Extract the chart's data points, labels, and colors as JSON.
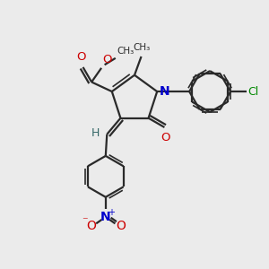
{
  "bg_color": "#ebebeb",
  "bond_color": "#2a2a2a",
  "figsize": [
    3.0,
    3.0
  ],
  "dpi": 100,
  "xlim": [
    0,
    10
  ],
  "ylim": [
    0,
    10
  ],
  "N_color": "#0000cc",
  "O_color": "#cc0000",
  "Cl_color": "#008800",
  "H_color": "#336666",
  "lw": 1.6,
  "lw_inner": 1.2
}
